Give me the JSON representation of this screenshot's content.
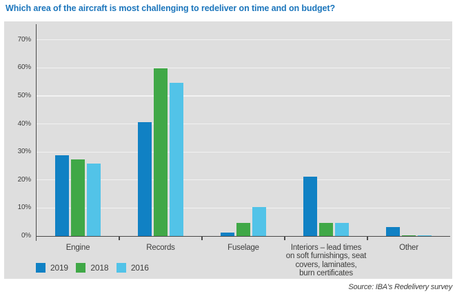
{
  "chart_data": {
    "type": "bar",
    "title": "Which area of the aircraft is most challenging to redeliver on time and on budget?",
    "categories": [
      "Engine",
      "Records",
      "Fuselage",
      "Interiors – lead times\non soft furnishings, seat\ncovers, laminates,\nburn certificates",
      "Other"
    ],
    "series": [
      {
        "name": "2019",
        "color": "#1081c4",
        "values": [
          29,
          41,
          1.5,
          21.5,
          3.5
        ]
      },
      {
        "name": "2018",
        "color": "#40a847",
        "values": [
          27.5,
          60,
          5,
          5,
          0.5
        ]
      },
      {
        "name": "2016",
        "color": "#52c3e8",
        "values": [
          26,
          55,
          10.5,
          5,
          0.5
        ]
      }
    ],
    "ylabel": "",
    "xlabel": "",
    "ylim": [
      0,
      75
    ],
    "y_ticks": [
      "0%",
      "10%",
      "20%",
      "30%",
      "40%",
      "50%",
      "60%",
      "70%"
    ],
    "grid": "horizontal",
    "legend_position": "bottom-left",
    "plot_background": "#dedede",
    "source": "Source: IBA's Redelivery survey"
  }
}
